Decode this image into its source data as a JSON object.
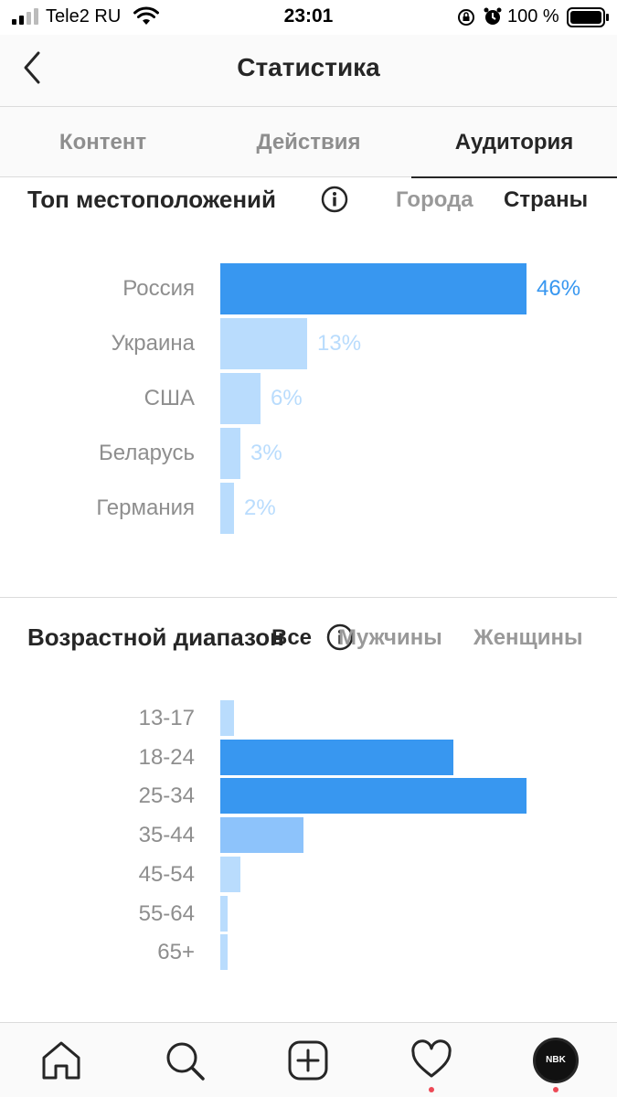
{
  "status_bar": {
    "carrier": "Tele2 RU",
    "time": "23:01",
    "battery": "100 %"
  },
  "header": {
    "title": "Статистика",
    "back_icon": "chevron-left-icon"
  },
  "tabs": [
    {
      "label": "Контент",
      "active": false
    },
    {
      "label": "Действия",
      "active": false
    },
    {
      "label": "Аудитория",
      "active": true
    }
  ],
  "locations": {
    "title": "Топ местоположений",
    "filters": [
      {
        "label": "Города",
        "active": false
      },
      {
        "label": "Страны",
        "active": true
      }
    ]
  },
  "age": {
    "title": "Возрастной диапазон",
    "filters": [
      {
        "label": "Все",
        "active": true
      },
      {
        "label": "Мужчины",
        "active": false
      },
      {
        "label": "Женщины",
        "active": false
      }
    ]
  },
  "colors": {
    "primary_bar": "#3897f0",
    "light_bar": "#b9dcfd",
    "mid_bar": "#8dc3fb",
    "primary_text": "#3897f0",
    "light_text": "#b9dcfd"
  },
  "chart_data": [
    {
      "type": "bar",
      "orientation": "horizontal",
      "categories": [
        "Россия",
        "Украина",
        "США",
        "Беларусь",
        "Германия"
      ],
      "values": [
        46,
        13,
        6,
        3,
        2
      ],
      "value_labels": [
        "46%",
        "13%",
        "6%",
        "3%",
        "2%"
      ],
      "highlight_index": 0
    },
    {
      "type": "bar",
      "orientation": "horizontal",
      "categories": [
        "13-17",
        "18-24",
        "25-34",
        "35-44",
        "45-54",
        "55-64",
        "65+"
      ],
      "values": [
        2,
        35,
        46,
        12.5,
        3,
        1,
        1
      ]
    }
  ],
  "bottom_nav": [
    {
      "icon": "home-icon"
    },
    {
      "icon": "search-icon"
    },
    {
      "icon": "add-post-icon"
    },
    {
      "icon": "heart-icon"
    },
    {
      "icon": "profile-avatar",
      "label": "NBK"
    }
  ]
}
